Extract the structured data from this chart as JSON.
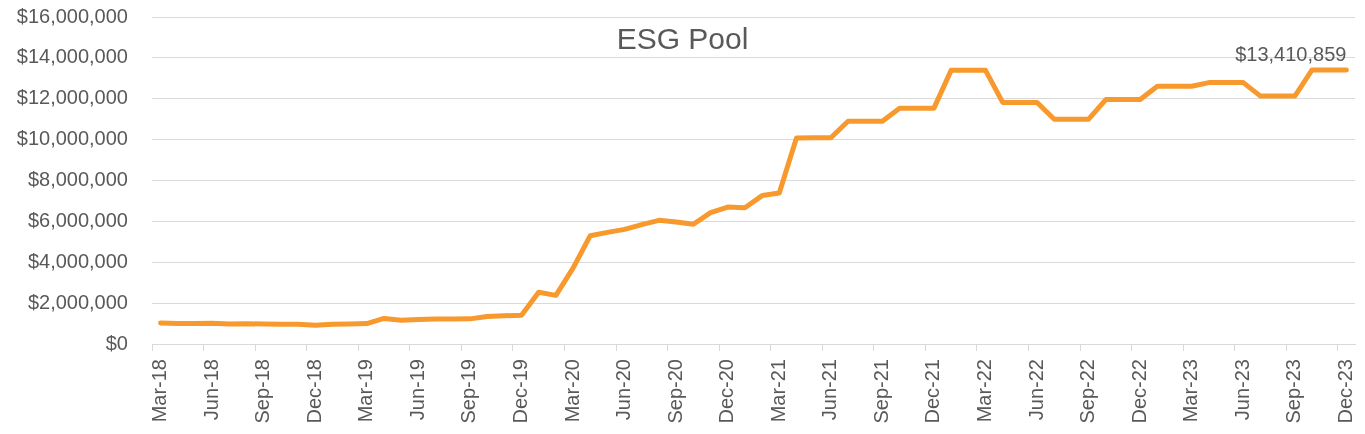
{
  "chart_data": {
    "type": "line",
    "title": "ESG Pool",
    "categories": [
      "Mar-18",
      null,
      null,
      "Jun-18",
      null,
      null,
      "Sep-18",
      null,
      null,
      "Dec-18",
      null,
      null,
      "Mar-19",
      null,
      null,
      "Jun-19",
      null,
      null,
      "Sep-19",
      null,
      null,
      "Dec-19",
      null,
      null,
      "Mar-20",
      null,
      null,
      "Jun-20",
      null,
      null,
      "Sep-20",
      null,
      null,
      "Dec-20",
      null,
      null,
      "Mar-21",
      null,
      null,
      "Jun-21",
      null,
      null,
      "Sep-21",
      null,
      null,
      "Dec-21",
      null,
      null,
      "Mar-22",
      null,
      null,
      "Jun-22",
      null,
      null,
      "Sep-22",
      null,
      null,
      "Dec-22",
      null,
      null,
      "Mar-23",
      null,
      null,
      "Jun-23",
      null,
      null,
      "Sep-23",
      null,
      null,
      "Dec-23"
    ],
    "values": [
      1030000,
      1000000,
      1000000,
      1010000,
      980000,
      990000,
      980000,
      970000,
      970000,
      920000,
      970000,
      980000,
      1000000,
      1250000,
      1160000,
      1200000,
      1220000,
      1220000,
      1230000,
      1350000,
      1380000,
      1410000,
      2530000,
      2380000,
      3710000,
      5300000,
      5460000,
      5610000,
      5840000,
      6050000,
      5970000,
      5860000,
      6430000,
      6700000,
      6670000,
      7260000,
      7390000,
      10080000,
      10090000,
      10090000,
      10900000,
      10900000,
      10900000,
      11540000,
      11540000,
      11540000,
      13390000,
      13390000,
      13390000,
      11820000,
      11820000,
      11820000,
      11000000,
      11000000,
      11000000,
      11960000,
      11960000,
      11960000,
      12610000,
      12610000,
      12610000,
      12790000,
      12790000,
      12790000,
      12130000,
      12130000,
      12130000,
      13410000,
      13410000,
      13410859
    ],
    "value_labels": [
      null,
      null,
      null,
      null,
      null,
      null,
      null,
      null,
      null,
      null,
      null,
      null,
      null,
      null,
      null,
      null,
      null,
      null,
      null,
      null,
      null,
      null,
      null,
      null,
      null,
      null,
      null,
      null,
      null,
      null,
      null,
      null,
      null,
      null,
      null,
      null,
      null,
      null,
      null,
      null,
      null,
      null,
      null,
      null,
      null,
      null,
      null,
      null,
      null,
      null,
      null,
      null,
      null,
      null,
      null,
      null,
      null,
      null,
      null,
      null,
      null,
      null,
      null,
      null,
      null,
      null,
      null,
      null,
      null,
      "$13,410,859"
    ],
    "color": "#f7992d",
    "ylim": [
      0,
      16000000
    ],
    "yticks": [
      {
        "value": 0,
        "label": "$0"
      },
      {
        "value": 2000000,
        "label": "$2,000,000"
      },
      {
        "value": 4000000,
        "label": "$4,000,000"
      },
      {
        "value": 6000000,
        "label": "$6,000,000"
      },
      {
        "value": 8000000,
        "label": "$8,000,000"
      },
      {
        "value": 10000000,
        "label": "$10,000,000"
      },
      {
        "value": 12000000,
        "label": "$12,000,000"
      },
      {
        "value": 14000000,
        "label": "$14,000,000"
      },
      {
        "value": 16000000,
        "label": "$16,000,000"
      }
    ],
    "grid": "y",
    "marker": "none"
  }
}
